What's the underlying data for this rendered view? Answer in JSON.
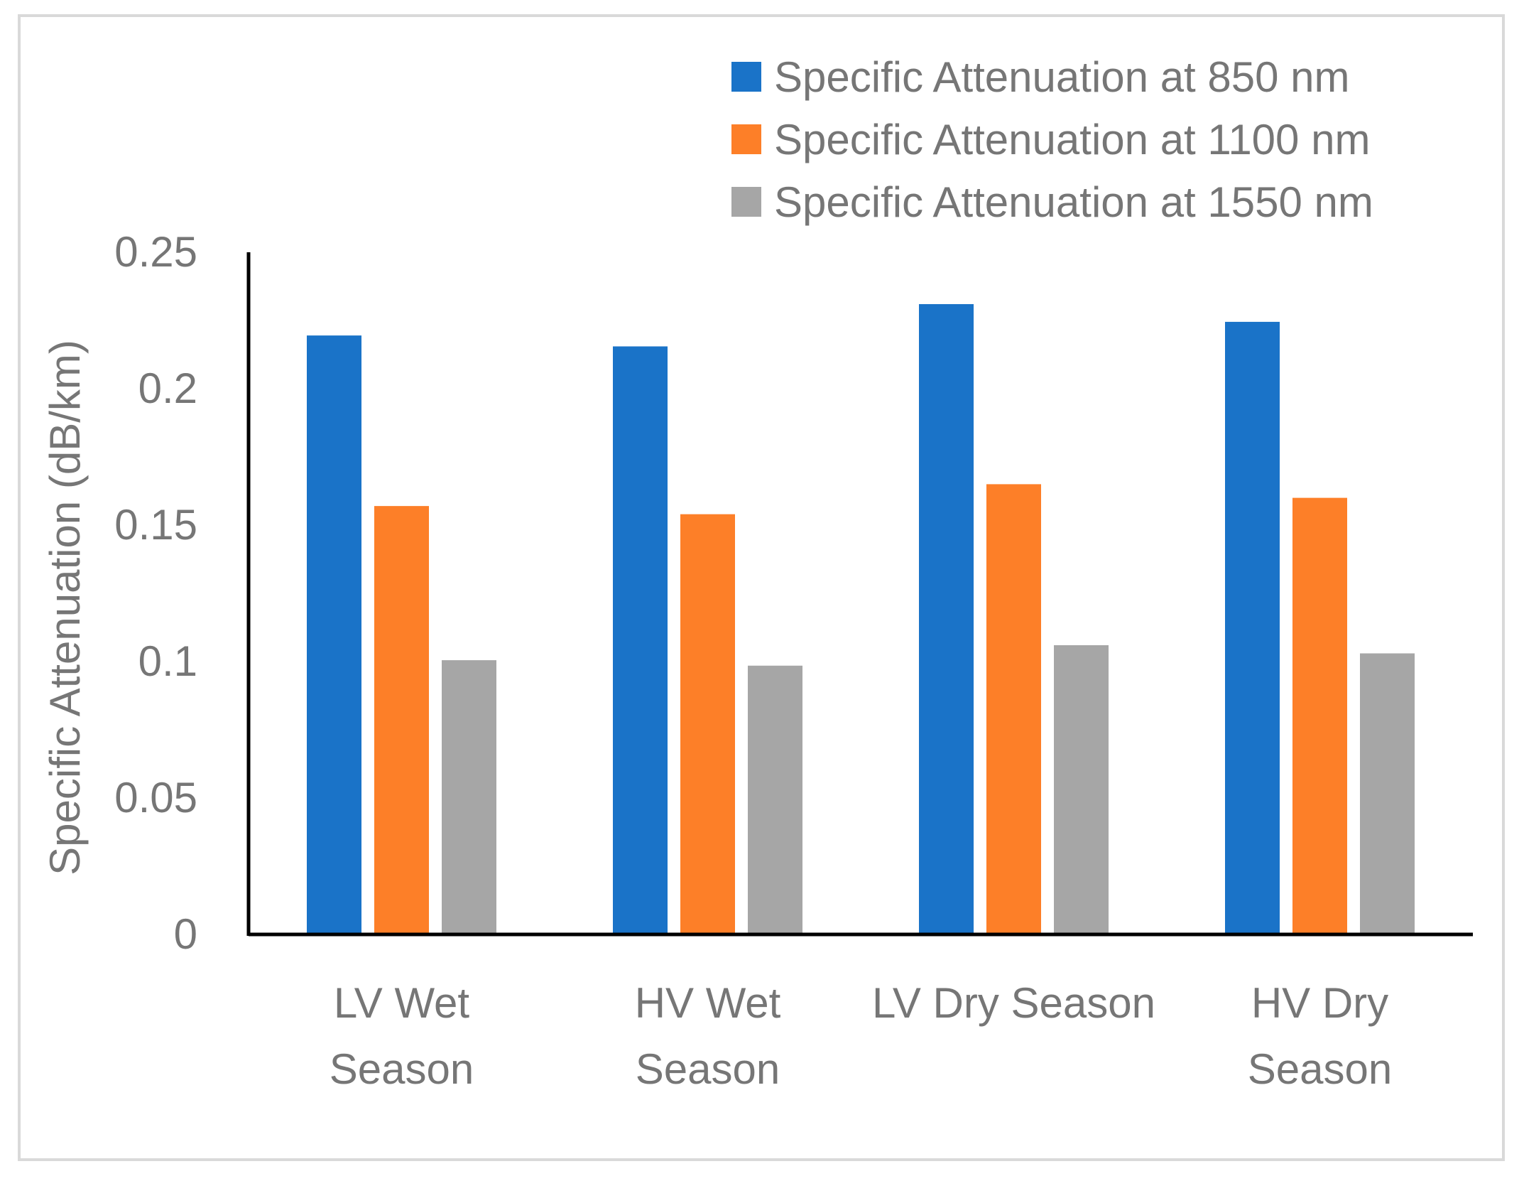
{
  "chart_data": {
    "type": "bar",
    "title": "",
    "xlabel": "",
    "ylabel": "Specific Attenuation (dB/km)",
    "ylim": [
      0,
      0.25
    ],
    "yticks": [
      {
        "value": 0,
        "label": "0"
      },
      {
        "value": 0.05,
        "label": "0.05"
      },
      {
        "value": 0.1,
        "label": "0.1"
      },
      {
        "value": 0.15,
        "label": "0.15"
      },
      {
        "value": 0.2,
        "label": "0.2"
      },
      {
        "value": 0.25,
        "label": "0.25"
      }
    ],
    "grid": false,
    "legend_position": "top-right",
    "categories": [
      [
        "LV Wet",
        "Season"
      ],
      [
        "HV Wet",
        "Season"
      ],
      [
        "LV Dry Season"
      ],
      [
        "HV Dry",
        "Season"
      ]
    ],
    "series": [
      {
        "name": "Specific Attenuation at 850 nm",
        "color": "#1a73c8",
        "values": [
          0.2195,
          0.2155,
          0.231,
          0.2245
        ]
      },
      {
        "name": "Specific Attenuation at 1100 nm",
        "color": "#fd7f28",
        "values": [
          0.157,
          0.154,
          0.165,
          0.16
        ]
      },
      {
        "name": "Specific Attenuation at 1550 nm",
        "color": "#a6a6a6",
        "values": [
          0.1005,
          0.0985,
          0.106,
          0.103
        ]
      }
    ]
  }
}
